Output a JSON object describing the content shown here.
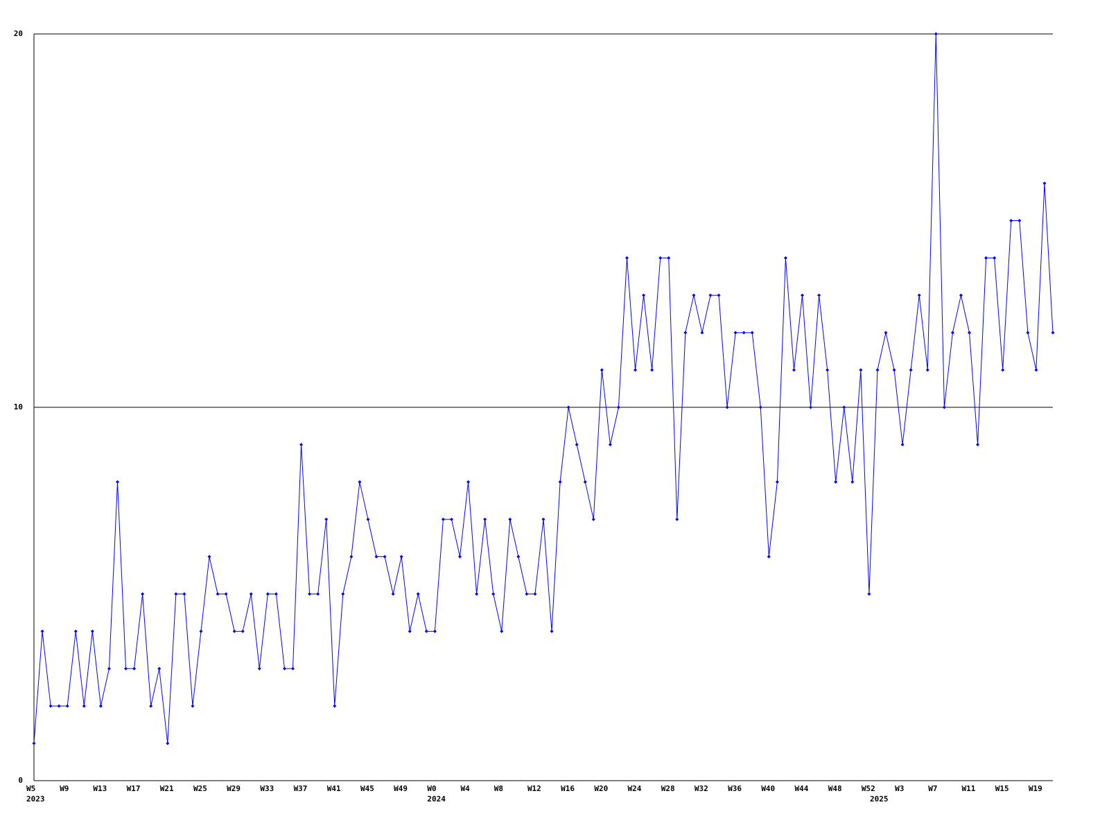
{
  "chart_data": {
    "type": "line",
    "color": "#0000ff",
    "ylim": [
      0,
      20
    ],
    "yticks": [
      0,
      10,
      20
    ],
    "grid": true,
    "markers": true,
    "categories": [
      "W5",
      null,
      null,
      null,
      "W9",
      null,
      null,
      null,
      "W13",
      null,
      null,
      null,
      "W17",
      null,
      null,
      null,
      "W21",
      null,
      null,
      null,
      "W25",
      null,
      null,
      null,
      "W29",
      null,
      null,
      null,
      "W33",
      null,
      null,
      null,
      "W37",
      null,
      null,
      null,
      "W41",
      null,
      null,
      null,
      "W45",
      null,
      null,
      null,
      "W49",
      null,
      null,
      null,
      "W0",
      null,
      null,
      null,
      "W4",
      null,
      null,
      null,
      "W8",
      null,
      null,
      null,
      "W12",
      null,
      null,
      null,
      "W16",
      null,
      null,
      null,
      "W20",
      null,
      null,
      null,
      "W24",
      null,
      null,
      null,
      "W28",
      null,
      null,
      null,
      "W32",
      null,
      null,
      null,
      "W36",
      null,
      null,
      null,
      "W40",
      null,
      null,
      null,
      "W44",
      null,
      null,
      null,
      "W48",
      null,
      null,
      null,
      "W52",
      null,
      null,
      null,
      "W3",
      null,
      null,
      null,
      "W7",
      null,
      null,
      null,
      "W11",
      null,
      null,
      null,
      "W15",
      null,
      null,
      null,
      "W19",
      null,
      null
    ],
    "category_years": [
      "2023",
      null,
      null,
      null,
      null,
      null,
      null,
      null,
      null,
      null,
      null,
      null,
      null,
      null,
      null,
      null,
      null,
      null,
      null,
      null,
      null,
      null,
      null,
      null,
      null,
      null,
      null,
      null,
      null,
      null,
      null,
      null,
      null,
      null,
      null,
      null,
      null,
      null,
      null,
      null,
      null,
      null,
      null,
      null,
      null,
      null,
      null,
      null,
      "2024",
      null,
      null,
      null,
      null,
      null,
      null,
      null,
      null,
      null,
      null,
      null,
      null,
      null,
      null,
      null,
      null,
      null,
      null,
      null,
      null,
      null,
      null,
      null,
      null,
      null,
      null,
      null,
      null,
      null,
      null,
      null,
      null,
      null,
      null,
      null,
      null,
      null,
      null,
      null,
      null,
      null,
      null,
      null,
      null,
      null,
      null,
      null,
      null,
      null,
      null,
      null,
      null,
      "2025",
      null,
      null,
      null,
      null,
      null,
      null,
      null,
      null,
      null,
      null,
      null,
      null,
      null,
      null,
      null,
      null,
      null,
      null,
      null,
      null,
      null
    ],
    "values": [
      1,
      4,
      2,
      2,
      2,
      4,
      2,
      4,
      2,
      3,
      8,
      3,
      3,
      5,
      2,
      3,
      1,
      5,
      5,
      2,
      4,
      6,
      5,
      5,
      4,
      4,
      5,
      3,
      5,
      5,
      3,
      3,
      9,
      5,
      5,
      7,
      2,
      5,
      6,
      8,
      7,
      6,
      6,
      5,
      6,
      4,
      5,
      4,
      4,
      7,
      7,
      6,
      8,
      5,
      7,
      5,
      4,
      7,
      6,
      5,
      5,
      7,
      4,
      8,
      10,
      9,
      8,
      7,
      11,
      9,
      10,
      14,
      11,
      13,
      11,
      14,
      14,
      7,
      12,
      13,
      12,
      13,
      13,
      10,
      12,
      12,
      12,
      10,
      6,
      8,
      14,
      11,
      13,
      10,
      13,
      11,
      8,
      10,
      8,
      11,
      5,
      11,
      12,
      11,
      9,
      11,
      13,
      11,
      20,
      10,
      12,
      13,
      12,
      9,
      14,
      14,
      11,
      15,
      15,
      12,
      11,
      16,
      12
    ]
  }
}
